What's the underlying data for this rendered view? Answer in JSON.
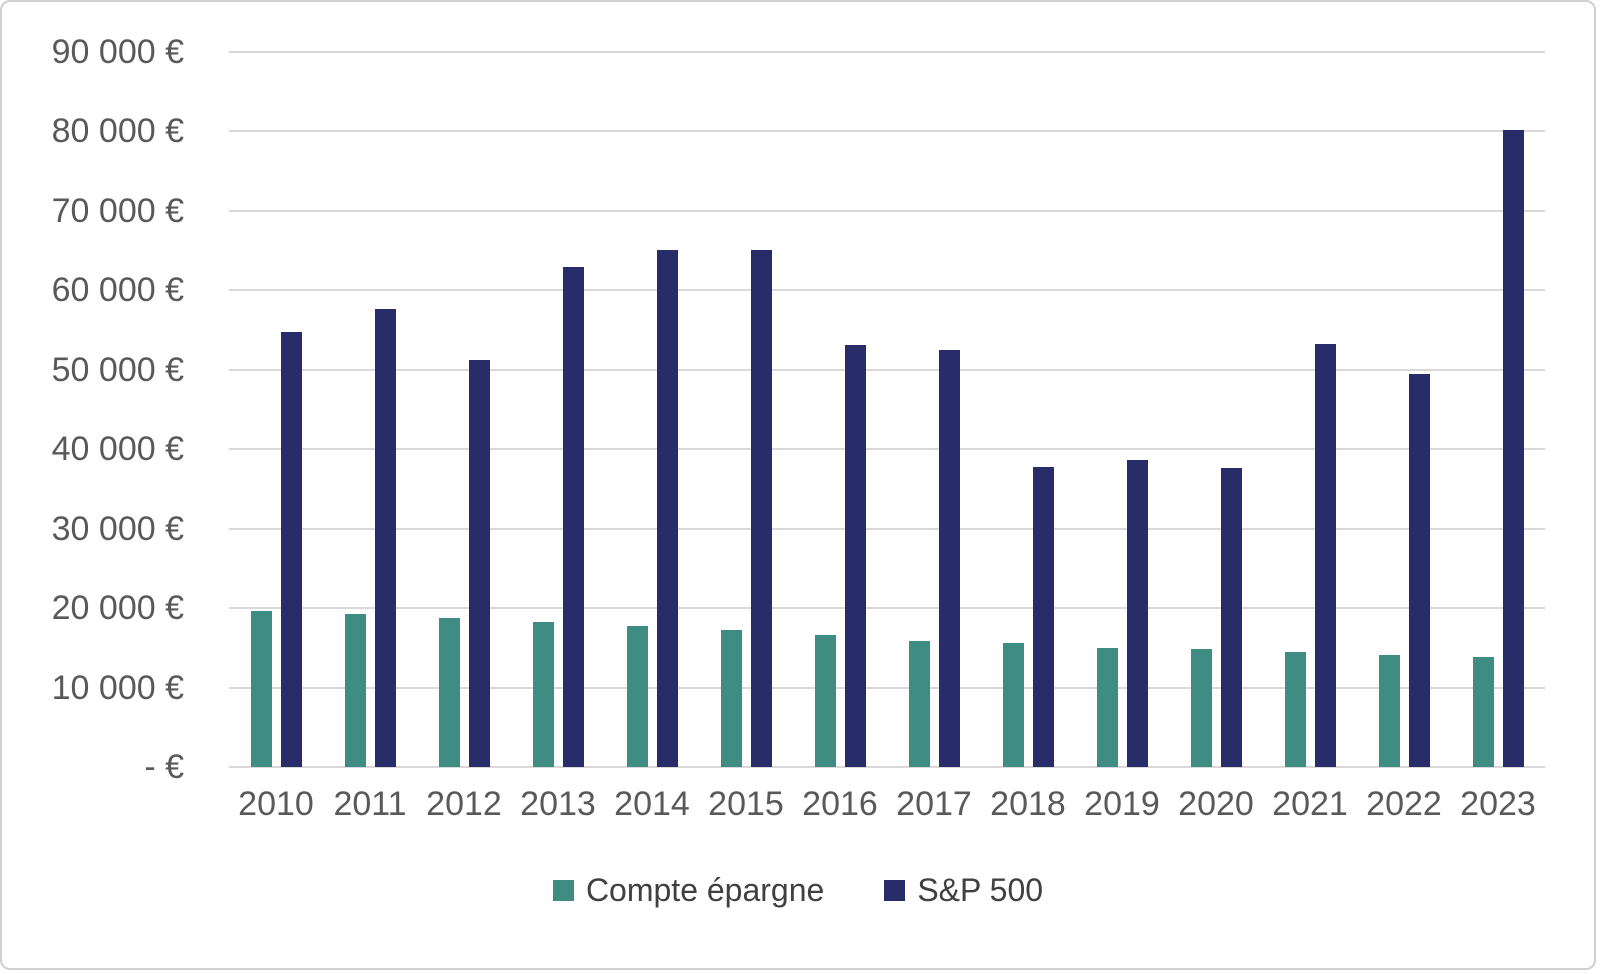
{
  "chart_data": {
    "type": "bar",
    "title": "",
    "xlabel": "",
    "ylabel": "",
    "categories": [
      "2010",
      "2011",
      "2012",
      "2013",
      "2014",
      "2015",
      "2016",
      "2017",
      "2018",
      "2019",
      "2020",
      "2021",
      "2022",
      "2023"
    ],
    "series": [
      {
        "name": "Compte épargne",
        "color": "#3E8C82",
        "values": [
          19700,
          19200,
          18800,
          18300,
          17800,
          17200,
          16600,
          15900,
          15600,
          15000,
          14800,
          14500,
          14100,
          13900
        ]
      },
      {
        "name": "S&P 500",
        "color": "#282C69",
        "values": [
          54800,
          57600,
          51200,
          63000,
          65100,
          65100,
          53100,
          52500,
          37800,
          38600,
          37600,
          53300,
          49500,
          80200
        ]
      }
    ],
    "ylim": [
      0,
      90000
    ],
    "ytick_step": 10000,
    "ytick_labels": [
      "- €",
      "10 000 €",
      "20 000 €",
      "30 000 €",
      "40 000 €",
      "50 000 €",
      "60 000 €",
      "70 000 €",
      "80 000 €",
      "90 000 €"
    ],
    "grid": true,
    "legend_position": "bottom"
  },
  "colors": {
    "grid": "#D9D9D9",
    "axis_text": "#595959",
    "legend_text": "#404040",
    "frame_border": "#CFD0D1",
    "background": "#FFFFFF"
  }
}
